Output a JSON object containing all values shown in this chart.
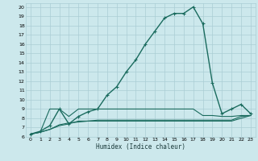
{
  "background_color": "#cce8ec",
  "line_color": "#1a6b5e",
  "grid_color": "#aacdd4",
  "xlabel": "Humidex (Indice chaleur)",
  "xlim": [
    -0.5,
    23.5
  ],
  "ylim": [
    6,
    20.4
  ],
  "yticks": [
    6,
    7,
    8,
    9,
    10,
    11,
    12,
    13,
    14,
    15,
    16,
    17,
    18,
    19,
    20
  ],
  "xticks": [
    0,
    1,
    2,
    3,
    4,
    5,
    6,
    7,
    8,
    9,
    10,
    11,
    12,
    13,
    14,
    15,
    16,
    17,
    18,
    19,
    20,
    21,
    22,
    23
  ],
  "series": [
    {
      "x": [
        0,
        1,
        2,
        3,
        4,
        5,
        6,
        7,
        8,
        9,
        10,
        11,
        12,
        13,
        14,
        15,
        16,
        17,
        18,
        19,
        20,
        21,
        22,
        23
      ],
      "y": [
        6.3,
        6.6,
        7.2,
        9.0,
        7.4,
        8.2,
        8.7,
        9.0,
        10.5,
        11.4,
        13.0,
        14.3,
        16.0,
        17.4,
        18.8,
        19.3,
        19.3,
        20.0,
        18.2,
        11.8,
        8.5,
        9.0,
        9.5,
        8.5
      ],
      "marker": "+",
      "lw": 1.0
    },
    {
      "x": [
        0,
        1,
        2,
        3,
        4,
        5,
        6,
        7,
        8,
        9,
        10,
        11,
        12,
        13,
        14,
        15,
        16,
        17,
        18,
        19,
        20,
        21,
        22,
        23
      ],
      "y": [
        6.3,
        6.5,
        9.0,
        9.0,
        8.2,
        9.0,
        9.0,
        9.0,
        9.0,
        9.0,
        9.0,
        9.0,
        9.0,
        9.0,
        9.0,
        9.0,
        9.0,
        9.0,
        8.3,
        8.3,
        8.2,
        8.2,
        8.3,
        8.3
      ],
      "marker": null,
      "lw": 0.8
    },
    {
      "x": [
        0,
        1,
        2,
        3,
        4,
        5,
        6,
        7,
        8,
        9,
        10,
        11,
        12,
        13,
        14,
        15,
        16,
        17,
        18,
        19,
        20,
        21,
        22,
        23
      ],
      "y": [
        6.3,
        6.5,
        6.8,
        7.3,
        7.5,
        7.6,
        7.7,
        7.8,
        7.8,
        7.8,
        7.8,
        7.8,
        7.8,
        7.8,
        7.8,
        7.8,
        7.8,
        7.8,
        7.8,
        7.8,
        7.8,
        7.8,
        8.2,
        8.3
      ],
      "marker": null,
      "lw": 0.8
    },
    {
      "x": [
        0,
        1,
        2,
        3,
        4,
        5,
        6,
        7,
        8,
        9,
        10,
        11,
        12,
        13,
        14,
        15,
        16,
        17,
        18,
        19,
        20,
        21,
        22,
        23
      ],
      "y": [
        6.3,
        6.5,
        6.8,
        7.2,
        7.4,
        7.7,
        7.7,
        7.7,
        7.7,
        7.7,
        7.7,
        7.7,
        7.7,
        7.7,
        7.7,
        7.7,
        7.7,
        7.7,
        7.7,
        7.7,
        7.7,
        7.7,
        8.0,
        8.3
      ],
      "marker": null,
      "lw": 0.8
    }
  ]
}
